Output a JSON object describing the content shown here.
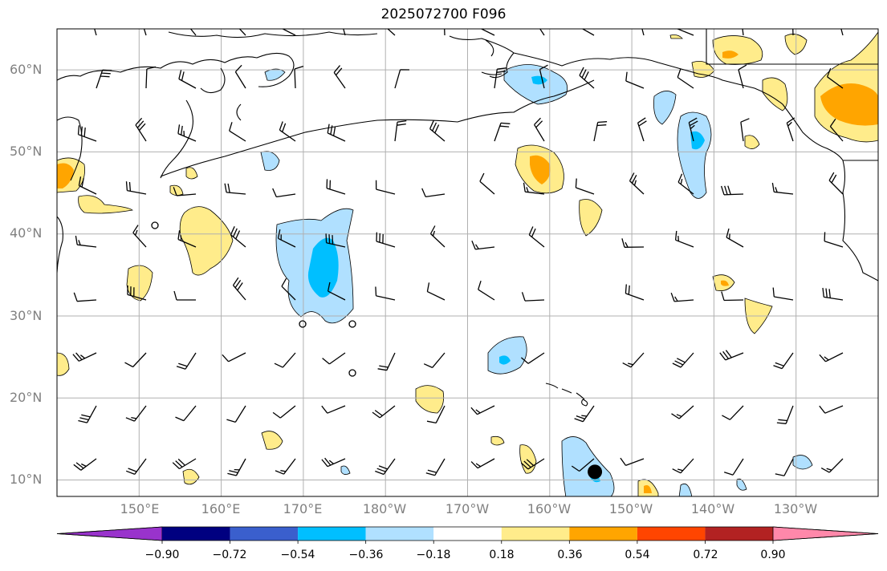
{
  "title": "2025072700 F096",
  "map": {
    "lat_labels": [
      "60°N",
      "50°N",
      "40°N",
      "30°N",
      "20°N",
      "10°N"
    ],
    "lon_labels": [
      "150°E",
      "160°E",
      "170°E",
      "180°W",
      "170°W",
      "160°W",
      "150°W",
      "140°W",
      "130°W"
    ],
    "extent": {
      "lon_min": 140,
      "lon_max": 240,
      "lat_min": 8,
      "lat_max": 65
    },
    "marker": {
      "name": "storm-center",
      "lon": 205.5,
      "lat": 11
    }
  },
  "colorbar": {
    "ticks": [
      "−0.90",
      "−0.72",
      "−0.54",
      "−0.36",
      "−0.18",
      "0.18",
      "0.36",
      "0.54",
      "0.72",
      "0.90"
    ],
    "colors": [
      "#9933cc",
      "#000080",
      "#3a5fcd",
      "#00bfff",
      "#b0e0ff",
      "#ffffff",
      "#ffec8b",
      "#ffa500",
      "#ff4500",
      "#b22222",
      "#ff88aa"
    ]
  },
  "colors": {
    "grid": "#b0b0b0",
    "coast": "#000000",
    "pos1": "#ffec8b",
    "pos2": "#ffa500",
    "neg1": "#b0e0ff",
    "neg2": "#00bfff"
  }
}
